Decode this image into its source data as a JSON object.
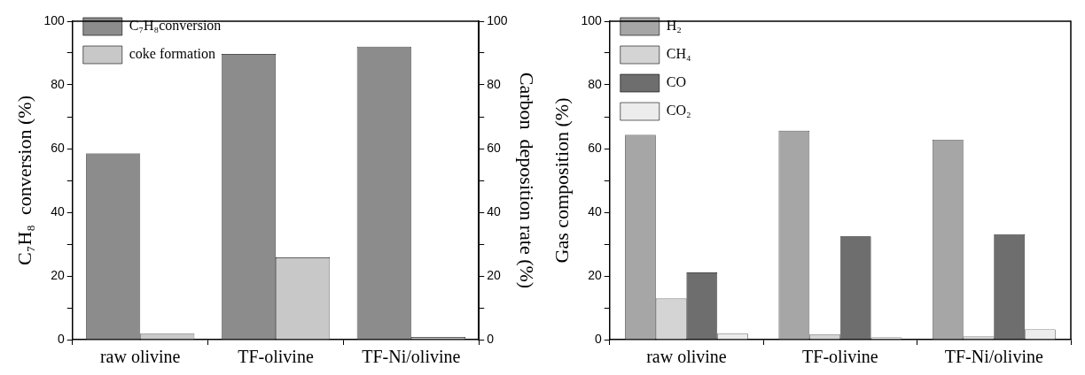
{
  "chart_data": [
    {
      "type": "bar",
      "categories": [
        "raw olivine",
        "TF-olivine",
        "TF-Ni/olivine"
      ],
      "ylabel": "C₇H₈  conversion (%)",
      "y2label": "Carbon  deposition rate (%)",
      "series": [
        {
          "name": "C₇H₈conversion",
          "color": "#8c8c8c",
          "values": [
            58.5,
            89.7,
            92.0
          ]
        },
        {
          "name": "coke formation",
          "color": "#c8c8c8",
          "values": [
            1.9,
            25.8,
            0.8
          ],
          "axis": "y2"
        }
      ],
      "ylim": [
        0,
        100
      ],
      "yticks": [
        0,
        {
          "value": 10,
          "label": null
        },
        20,
        {
          "value": 30,
          "label": null
        },
        40,
        {
          "value": 50,
          "label": null
        },
        60,
        {
          "value": 70,
          "label": null
        },
        80,
        {
          "value": 90,
          "label": null
        },
        100
      ],
      "y2lim": [
        0,
        100
      ],
      "y2ticks": [
        0,
        {
          "value": 10,
          "label": null
        },
        20,
        {
          "value": 30,
          "label": null
        },
        40,
        {
          "value": 50,
          "label": null
        },
        60,
        {
          "value": 70,
          "label": null
        },
        80,
        {
          "value": 90,
          "label": null
        },
        100
      ],
      "grid": false,
      "legend": "top left"
    },
    {
      "type": "bar",
      "categories": [
        "raw olivine",
        "TF-olivine",
        "TF-Ni/olivine"
      ],
      "ylabel": "Gas composition (%)",
      "series": [
        {
          "name": "H₂",
          "color": "#a6a6a6",
          "values": [
            64.3,
            65.6,
            62.8
          ]
        },
        {
          "name": "CH₄",
          "color": "#d4d4d4",
          "values": [
            12.9,
            1.6,
            1.0
          ]
        },
        {
          "name": "CO",
          "color": "#6e6e6e",
          "values": [
            21.1,
            32.4,
            33.1
          ]
        },
        {
          "name": "CO₂",
          "color": "#ececec",
          "values": [
            1.9,
            0.7,
            3.2
          ]
        }
      ],
      "ylim": [
        0,
        100
      ],
      "yticks": [
        0,
        {
          "value": 10,
          "label": null
        },
        20,
        {
          "value": 30,
          "label": null
        },
        40,
        {
          "value": 50,
          "label": null
        },
        60,
        {
          "value": 70,
          "label": null
        },
        80,
        {
          "value": 90,
          "label": null
        },
        100
      ],
      "grid": false,
      "legend": "top left"
    }
  ]
}
